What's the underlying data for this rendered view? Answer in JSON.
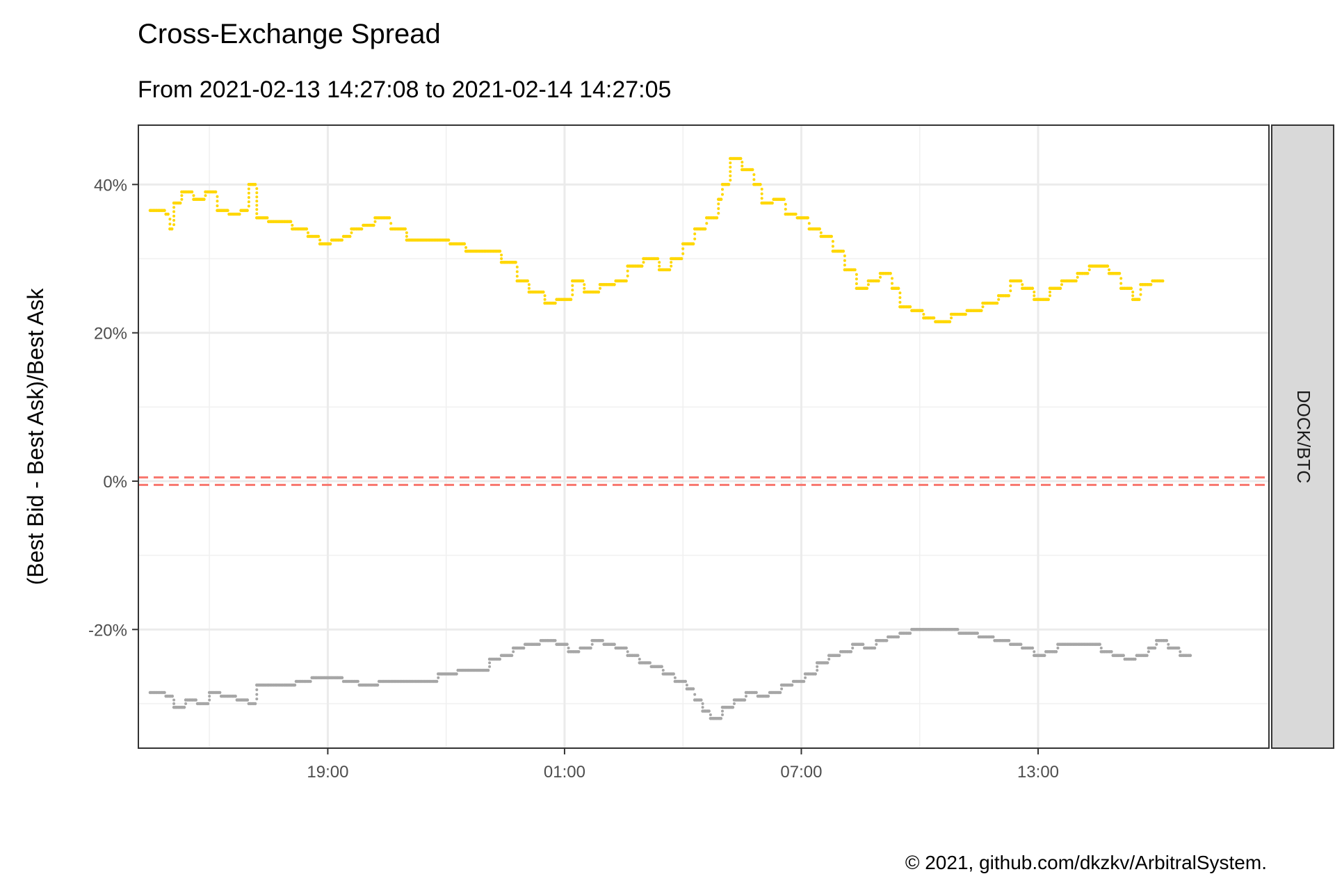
{
  "chart_data": {
    "type": "scatter",
    "title": "Cross-Exchange Spread",
    "subtitle": "From 2021-02-13 14:27:08 to 2021-02-14 14:27:05",
    "xlabel": "",
    "ylabel": "(Best Bid - Best Ask)/Best Ask",
    "facet_label": "DOCK/BTC",
    "caption": "© 2021, github.com/dkzkv/ArbitralSystem.",
    "x_unit": "hours from 2021-02-13 14:27:08",
    "xlim_hours": [
      -0.2,
      26.2
    ],
    "x_ticks": [
      {
        "hour": 19,
        "label": "19:00"
      },
      {
        "hour": 25,
        "label": "01:00"
      },
      {
        "hour": 31,
        "label": "07:00"
      },
      {
        "hour": 37,
        "label": "13:00"
      }
    ],
    "ylim": [
      -0.36,
      0.48
    ],
    "y_ticks": [
      {
        "value": -0.2,
        "label": "-20%"
      },
      {
        "value": 0.0,
        "label": "0%"
      },
      {
        "value": 0.2,
        "label": "20%"
      },
      {
        "value": 0.4,
        "label": "40%"
      }
    ],
    "y_minor": [
      -0.3,
      -0.1,
      0.1,
      0.3
    ],
    "x_minor_hours": [
      16,
      22,
      28,
      34
    ],
    "reference_lines": [
      0.005,
      -0.005
    ],
    "reference_color": "#f8766d",
    "series": [
      {
        "color": "#ffd700",
        "points": [
          [
            14.5,
            0.365
          ],
          [
            14.9,
            0.36
          ],
          [
            15.0,
            0.34
          ],
          [
            15.1,
            0.375
          ],
          [
            15.3,
            0.39
          ],
          [
            15.6,
            0.38
          ],
          [
            15.9,
            0.39
          ],
          [
            16.2,
            0.365
          ],
          [
            16.5,
            0.36
          ],
          [
            16.8,
            0.365
          ],
          [
            17.0,
            0.4
          ],
          [
            17.2,
            0.355
          ],
          [
            17.5,
            0.35
          ],
          [
            17.9,
            0.35
          ],
          [
            18.1,
            0.34
          ],
          [
            18.5,
            0.33
          ],
          [
            18.8,
            0.32
          ],
          [
            19.1,
            0.325
          ],
          [
            19.4,
            0.33
          ],
          [
            19.6,
            0.34
          ],
          [
            19.9,
            0.345
          ],
          [
            20.2,
            0.355
          ],
          [
            20.6,
            0.34
          ],
          [
            21.0,
            0.325
          ],
          [
            21.5,
            0.325
          ],
          [
            22.1,
            0.32
          ],
          [
            22.5,
            0.31
          ],
          [
            23.0,
            0.31
          ],
          [
            23.4,
            0.295
          ],
          [
            23.8,
            0.27
          ],
          [
            24.1,
            0.255
          ],
          [
            24.5,
            0.24
          ],
          [
            24.8,
            0.245
          ],
          [
            25.2,
            0.27
          ],
          [
            25.5,
            0.255
          ],
          [
            25.9,
            0.265
          ],
          [
            26.3,
            0.27
          ],
          [
            26.6,
            0.29
          ],
          [
            27.0,
            0.3
          ],
          [
            27.4,
            0.285
          ],
          [
            27.7,
            0.3
          ],
          [
            28.0,
            0.32
          ],
          [
            28.3,
            0.34
          ],
          [
            28.6,
            0.355
          ],
          [
            28.9,
            0.38
          ],
          [
            29.0,
            0.4
          ],
          [
            29.2,
            0.435
          ],
          [
            29.5,
            0.42
          ],
          [
            29.8,
            0.4
          ],
          [
            30.0,
            0.375
          ],
          [
            30.3,
            0.38
          ],
          [
            30.6,
            0.36
          ],
          [
            30.9,
            0.355
          ],
          [
            31.2,
            0.34
          ],
          [
            31.5,
            0.33
          ],
          [
            31.8,
            0.31
          ],
          [
            32.1,
            0.285
          ],
          [
            32.4,
            0.26
          ],
          [
            32.7,
            0.27
          ],
          [
            33.0,
            0.28
          ],
          [
            33.3,
            0.26
          ],
          [
            33.5,
            0.235
          ],
          [
            33.8,
            0.23
          ],
          [
            34.1,
            0.22
          ],
          [
            34.4,
            0.215
          ],
          [
            34.8,
            0.225
          ],
          [
            35.2,
            0.23
          ],
          [
            35.6,
            0.24
          ],
          [
            36.0,
            0.25
          ],
          [
            36.3,
            0.27
          ],
          [
            36.6,
            0.26
          ],
          [
            36.9,
            0.245
          ],
          [
            37.3,
            0.26
          ],
          [
            37.6,
            0.27
          ],
          [
            38.0,
            0.28
          ],
          [
            38.3,
            0.29
          ],
          [
            38.6,
            0.29
          ],
          [
            38.8,
            0.28
          ],
          [
            39.1,
            0.26
          ],
          [
            39.4,
            0.245
          ],
          [
            39.6,
            0.265
          ],
          [
            39.9,
            0.27
          ]
        ]
      },
      {
        "color": "#a6a6a6",
        "points": [
          [
            14.5,
            -0.285
          ],
          [
            14.9,
            -0.29
          ],
          [
            15.1,
            -0.305
          ],
          [
            15.4,
            -0.295
          ],
          [
            15.7,
            -0.3
          ],
          [
            16.0,
            -0.285
          ],
          [
            16.3,
            -0.29
          ],
          [
            16.7,
            -0.295
          ],
          [
            17.0,
            -0.3
          ],
          [
            17.2,
            -0.275
          ],
          [
            17.5,
            -0.275
          ],
          [
            17.9,
            -0.275
          ],
          [
            18.2,
            -0.27
          ],
          [
            18.6,
            -0.265
          ],
          [
            19.0,
            -0.265
          ],
          [
            19.4,
            -0.27
          ],
          [
            19.8,
            -0.275
          ],
          [
            20.3,
            -0.27
          ],
          [
            20.8,
            -0.27
          ],
          [
            21.3,
            -0.27
          ],
          [
            21.8,
            -0.26
          ],
          [
            22.3,
            -0.255
          ],
          [
            22.8,
            -0.255
          ],
          [
            23.1,
            -0.24
          ],
          [
            23.4,
            -0.235
          ],
          [
            23.7,
            -0.225
          ],
          [
            24.0,
            -0.22
          ],
          [
            24.4,
            -0.215
          ],
          [
            24.8,
            -0.22
          ],
          [
            25.1,
            -0.23
          ],
          [
            25.4,
            -0.225
          ],
          [
            25.7,
            -0.215
          ],
          [
            26.0,
            -0.22
          ],
          [
            26.3,
            -0.225
          ],
          [
            26.6,
            -0.235
          ],
          [
            26.9,
            -0.245
          ],
          [
            27.2,
            -0.25
          ],
          [
            27.5,
            -0.26
          ],
          [
            27.8,
            -0.27
          ],
          [
            28.1,
            -0.28
          ],
          [
            28.3,
            -0.295
          ],
          [
            28.5,
            -0.31
          ],
          [
            28.7,
            -0.32
          ],
          [
            29.0,
            -0.305
          ],
          [
            29.3,
            -0.295
          ],
          [
            29.6,
            -0.285
          ],
          [
            29.9,
            -0.29
          ],
          [
            30.2,
            -0.285
          ],
          [
            30.5,
            -0.275
          ],
          [
            30.8,
            -0.27
          ],
          [
            31.1,
            -0.26
          ],
          [
            31.4,
            -0.245
          ],
          [
            31.7,
            -0.235
          ],
          [
            32.0,
            -0.23
          ],
          [
            32.3,
            -0.22
          ],
          [
            32.6,
            -0.225
          ],
          [
            32.9,
            -0.215
          ],
          [
            33.2,
            -0.21
          ],
          [
            33.5,
            -0.205
          ],
          [
            33.8,
            -0.2
          ],
          [
            34.1,
            -0.2
          ],
          [
            34.6,
            -0.2
          ],
          [
            35.0,
            -0.205
          ],
          [
            35.5,
            -0.21
          ],
          [
            35.9,
            -0.215
          ],
          [
            36.3,
            -0.22
          ],
          [
            36.6,
            -0.225
          ],
          [
            36.9,
            -0.235
          ],
          [
            37.2,
            -0.23
          ],
          [
            37.5,
            -0.22
          ],
          [
            37.9,
            -0.22
          ],
          [
            38.3,
            -0.22
          ],
          [
            38.6,
            -0.23
          ],
          [
            38.9,
            -0.235
          ],
          [
            39.2,
            -0.24
          ],
          [
            39.5,
            -0.235
          ],
          [
            39.8,
            -0.225
          ],
          [
            40.0,
            -0.215
          ],
          [
            40.3,
            -0.225
          ],
          [
            40.6,
            -0.235
          ]
        ]
      }
    ]
  }
}
